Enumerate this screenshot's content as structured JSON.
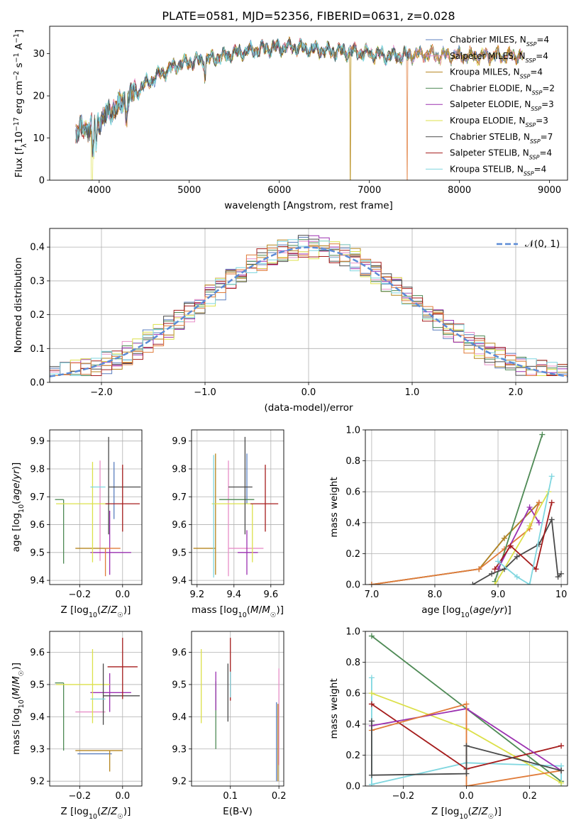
{
  "title": "PLATE=0581, MJD=52356, FIBERID=0631, z=0.028",
  "colors": {
    "Chabrier MILES": "#5b7fbf",
    "Salpeter MILES": "#e88fc8",
    "Kroupa MILES": "#b5851f",
    "Chabrier ELODIE": "#4e8a55",
    "Salpeter ELODIE": "#9b30b0",
    "Kroupa ELODIE": "#dce04a",
    "Chabrier STELIB": "#4a4a4a",
    "Salpeter STELIB": "#a51c1c",
    "Kroupa STELIB": "#7fd6df",
    "orange": "#e07b39",
    "gauss": "#5b8bd6"
  },
  "chart_data": [
    {
      "id": "spectrum",
      "type": "line",
      "xlabel": "wavelength [Angstrom, rest frame]",
      "ylabel": "Flux [f_λ10^-17 erg cm^-2 s^-1 A^-1]",
      "xlim": [
        3450,
        9200
      ],
      "ylim": [
        0,
        36.5
      ],
      "xticks": [
        4000,
        5000,
        6000,
        7000,
        8000,
        9000
      ],
      "yticks": [
        0,
        10,
        20,
        30
      ],
      "legend_position": "right",
      "legend": [
        {
          "name": "Chabrier MILES",
          "nssp": "4"
        },
        {
          "name": "Salpeter MILES",
          "nssp": "4"
        },
        {
          "name": "Kroupa MILES",
          "nssp": "4"
        },
        {
          "name": "Chabrier ELODIE",
          "nssp": "2"
        },
        {
          "name": "Salpeter ELODIE",
          "nssp": "3"
        },
        {
          "name": "Kroupa ELODIE",
          "nssp": "3"
        },
        {
          "name": "Chabrier STELIB",
          "nssp": "7"
        },
        {
          "name": "Salpeter STELIB",
          "nssp": "4"
        },
        {
          "name": "Kroupa STELIB",
          "nssp": "4"
        }
      ],
      "continuum": [
        [
          3740,
          11
        ],
        [
          3800,
          12
        ],
        [
          3900,
          12.5
        ],
        [
          4000,
          14
        ],
        [
          4100,
          16
        ],
        [
          4200,
          17.5
        ],
        [
          4300,
          19
        ],
        [
          4400,
          21
        ],
        [
          4500,
          22.5
        ],
        [
          4600,
          24
        ],
        [
          4700,
          25.5
        ],
        [
          4800,
          26.5
        ],
        [
          4900,
          27.5
        ],
        [
          5000,
          28
        ],
        [
          5200,
          28.5
        ],
        [
          5400,
          29.5
        ],
        [
          5600,
          30.5
        ],
        [
          5800,
          31
        ],
        [
          6000,
          31.5
        ],
        [
          6200,
          31.5
        ],
        [
          6400,
          31
        ],
        [
          6600,
          30.5
        ],
        [
          6800,
          30.5
        ],
        [
          7000,
          30
        ],
        [
          7200,
          29.5
        ],
        [
          7400,
          29.5
        ],
        [
          7600,
          30
        ],
        [
          7800,
          29.5
        ],
        [
          8000,
          29.5
        ],
        [
          8200,
          29.5
        ],
        [
          8400,
          29.5
        ],
        [
          8600,
          29.5
        ],
        [
          8800,
          29.5
        ]
      ]
    },
    {
      "id": "residuals",
      "type": "line",
      "xlabel": "(data-model)/error",
      "ylabel": "Normed distribution",
      "xlim": [
        -2.5,
        2.5
      ],
      "ylim": [
        0,
        0.455
      ],
      "xticks": [
        -2,
        -1,
        0,
        1,
        2
      ],
      "yticks": [
        0.0,
        0.1,
        0.2,
        0.3,
        0.4
      ],
      "grid": true,
      "legend_position": "top-right",
      "series": [
        {
          "name": "𝒩(0, 1)",
          "mu": 0,
          "sigma": 1
        }
      ]
    },
    {
      "id": "age-vs-Z",
      "type": "scatter",
      "xlabel": "Z [log10(Z/Z☉)]",
      "ylabel": "age  [log10(age/yr)]",
      "xlim": [
        -0.34,
        0.09
      ],
      "ylim": [
        9.385,
        9.94
      ],
      "xticks": [
        -0.2,
        0.0
      ],
      "yticks": [
        9.4,
        9.5,
        9.6,
        9.7,
        9.8,
        9.9
      ],
      "grid": true,
      "points": [
        {
          "model": "Chabrier MILES",
          "x": -0.04,
          "y": 9.775,
          "ex": [
            0.0,
            0.0
          ],
          "ey": [
            0.155,
            0.05
          ]
        },
        {
          "model": "Salpeter MILES",
          "x": -0.105,
          "y": 9.68,
          "ex": [
            0.0,
            0.0
          ],
          "ey": [
            0.21,
            0.15
          ]
        },
        {
          "model": "Kroupa MILES",
          "x": -0.08,
          "y": 9.515,
          "ex": [
            0.14,
            0.0
          ],
          "ey": [
            0.0,
            0.0
          ]
        },
        {
          "model": "Chabrier ELODIE",
          "x": -0.275,
          "y": 9.69,
          "ex": [
            0.04,
            0.0
          ],
          "ey": [
            0.23,
            0.0
          ]
        },
        {
          "model": "Salpeter ELODIE",
          "x": -0.06,
          "y": 9.5,
          "ex": [
            0.09,
            0.1
          ],
          "ey": [
            0.08,
            0.15
          ]
        },
        {
          "model": "Kroupa ELODIE",
          "x": -0.14,
          "y": 9.675,
          "ex": [
            0.17,
            0.08
          ],
          "ey": [
            0.21,
            0.15
          ]
        },
        {
          "model": "Chabrier STELIB",
          "x": -0.065,
          "y": 9.735,
          "ex": [
            0.0,
            0.15
          ],
          "ey": [
            0.17,
            0.18
          ]
        },
        {
          "model": "Salpeter STELIB",
          "x": 0.0,
          "y": 9.675,
          "ex": [
            0.08,
            0.08
          ],
          "ey": [
            0.1,
            0.14
          ]
        },
        {
          "model": "Kroupa STELIB",
          "x": -0.08,
          "y": 9.735,
          "ex": [
            0.07,
            0.0
          ],
          "ey": [
            0.0,
            0.0
          ]
        },
        {
          "model": "orange",
          "x": -0.08,
          "y": 9.515,
          "ex": [
            0.0,
            0.07
          ],
          "ey": [
            0.1,
            0.0
          ]
        }
      ]
    },
    {
      "id": "age-vs-mass",
      "type": "scatter",
      "xlabel": "mass [log10(M/M☉)]",
      "ylabel": "",
      "xlim": [
        9.17,
        9.67
      ],
      "ylim": [
        9.385,
        9.94
      ],
      "xticks": [
        9.2,
        9.4,
        9.6
      ],
      "yticks": [
        9.4,
        9.5,
        9.6,
        9.7,
        9.8,
        9.9
      ],
      "grid": true,
      "points": [
        {
          "model": "Chabrier MILES",
          "x": 9.47,
          "y": 9.775,
          "ex": [
            0.0,
            0.0
          ],
          "ey": [
            0.1,
            0.08
          ]
        },
        {
          "model": "Salpeter MILES",
          "x": 9.37,
          "y": 9.515,
          "ex": [
            0.0,
            0.19
          ],
          "ey": [
            0.1,
            0.315
          ]
        },
        {
          "model": "Kroupa MILES",
          "x": 9.3,
          "y": 9.515,
          "ex": [
            0.12,
            0.0
          ],
          "ey": [
            0.095,
            0.34
          ]
        },
        {
          "model": "Chabrier ELODIE",
          "x": 9.4,
          "y": 9.69,
          "ex": [
            0.08,
            0.11
          ],
          "ey": [
            0.0,
            0.0
          ]
        },
        {
          "model": "Salpeter ELODIE",
          "x": 9.47,
          "y": 9.5,
          "ex": [
            0.05,
            0.06
          ],
          "ey": [
            0.08,
            0.08
          ]
        },
        {
          "model": "Kroupa ELODIE",
          "x": 9.5,
          "y": 9.675,
          "ex": [
            0.22,
            0.0
          ],
          "ey": [
            0.21,
            0.0
          ]
        },
        {
          "model": "Chabrier STELIB",
          "x": 9.46,
          "y": 9.735,
          "ex": [
            0.09,
            0.04
          ],
          "ey": [
            0.17,
            0.18
          ]
        },
        {
          "model": "Salpeter STELIB",
          "x": 9.57,
          "y": 9.675,
          "ex": [
            0.08,
            0.07
          ],
          "ey": [
            0.1,
            0.14
          ]
        },
        {
          "model": "Kroupa STELIB",
          "x": 9.29,
          "y": 9.68,
          "ex": [
            0.0,
            0.0
          ],
          "ey": [
            0.27,
            0.17
          ]
        }
      ]
    },
    {
      "id": "weight-vs-age",
      "type": "line",
      "xlabel": "age  [log10(age/yr)]",
      "ylabel": "mass weight",
      "xlim": [
        6.9,
        10.1
      ],
      "ylim": [
        0,
        1.0
      ],
      "xticks": [
        7,
        8,
        9,
        10
      ],
      "yticks": [
        0.0,
        0.2,
        0.4,
        0.6,
        0.8,
        1.0
      ],
      "grid": true,
      "series": [
        {
          "model": "Chabrier MILES",
          "x": [
            7.0,
            8.7,
            9.1,
            9.65
          ],
          "y": [
            0.0,
            0.1,
            0.3,
            0.53
          ]
        },
        {
          "model": "Kroupa MILES",
          "x": [
            7.0,
            8.7,
            9.1,
            9.65
          ],
          "y": [
            0.0,
            0.1,
            0.3,
            0.53
          ]
        },
        {
          "model": "orange",
          "x": [
            7.0,
            8.7,
            9.1,
            9.5,
            9.65
          ],
          "y": [
            0.0,
            0.1,
            0.23,
            0.36,
            0.53
          ]
        },
        {
          "model": "Chabrier ELODIE",
          "x": [
            8.95,
            9.7
          ],
          "y": [
            0.02,
            0.97
          ]
        },
        {
          "model": "Salpeter ELODIE",
          "x": [
            9.0,
            9.5,
            9.65
          ],
          "y": [
            0.1,
            0.5,
            0.4
          ]
        },
        {
          "model": "Kroupa ELODIE",
          "x": [
            8.95,
            9.5,
            9.8
          ],
          "y": [
            0.0,
            0.38,
            0.6
          ]
        },
        {
          "model": "Chabrier STELIB",
          "x": [
            8.6,
            8.9,
            9.1,
            9.3,
            9.65,
            9.85,
            9.95,
            10.0
          ],
          "y": [
            0.0,
            0.07,
            0.1,
            0.18,
            0.26,
            0.42,
            0.05,
            0.07
          ]
        },
        {
          "model": "Salpeter STELIB",
          "x": [
            8.95,
            9.2,
            9.6,
            9.85
          ],
          "y": [
            0.1,
            0.25,
            0.1,
            0.53
          ]
        },
        {
          "model": "Kroupa STELIB",
          "x": [
            9.0,
            9.3,
            9.5,
            9.85
          ],
          "y": [
            0.15,
            0.05,
            0.0,
            0.7
          ]
        }
      ]
    },
    {
      "id": "mass-vs-Z",
      "type": "scatter",
      "xlabel": "Z [log10(Z/Z☉)]",
      "ylabel": "mass [log10(M/M☉)]",
      "xlim": [
        -0.34,
        0.09
      ],
      "ylim": [
        9.185,
        9.665
      ],
      "xticks": [
        -0.2,
        0.0
      ],
      "yticks": [
        9.2,
        9.3,
        9.4,
        9.5,
        9.6
      ],
      "grid": true,
      "points": [
        {
          "model": "Chabrier MILES",
          "x": -0.05,
          "y": 9.285,
          "ex": [
            0.16,
            0.0
          ],
          "ey": [
            0.0,
            0.0
          ]
        },
        {
          "model": "Salpeter MILES",
          "x": -0.08,
          "y": 9.415,
          "ex": [
            0.14,
            0.0
          ],
          "ey": [
            0.0,
            0.0
          ]
        },
        {
          "model": "Kroupa MILES",
          "x": -0.06,
          "y": 9.295,
          "ex": [
            0.16,
            0.06
          ],
          "ey": [
            0.065,
            0.0
          ]
        },
        {
          "model": "Chabrier ELODIE",
          "x": -0.275,
          "y": 9.505,
          "ex": [
            0.04,
            0.0
          ],
          "ey": [
            0.21,
            0.0
          ]
        },
        {
          "model": "Salpeter ELODIE",
          "x": -0.06,
          "y": 9.475,
          "ex": [
            0.09,
            0.1
          ],
          "ey": [
            0.06,
            0.06
          ]
        },
        {
          "model": "Kroupa ELODIE",
          "x": -0.14,
          "y": 9.5,
          "ex": [
            0.17,
            0.08
          ],
          "ey": [
            0.12,
            0.11
          ]
        },
        {
          "model": "Chabrier STELIB",
          "x": -0.09,
          "y": 9.465,
          "ex": [
            0.0,
            0.17
          ],
          "ey": [
            0.09,
            0.1
          ]
        },
        {
          "model": "Salpeter STELIB",
          "x": 0.0,
          "y": 9.555,
          "ex": [
            0.07,
            0.07
          ],
          "ey": [
            0.1,
            0.09
          ]
        },
        {
          "model": "Kroupa STELIB",
          "x": -0.08,
          "y": 9.455,
          "ex": [
            0.07,
            0.0
          ],
          "ey": [
            0.0,
            0.0
          ]
        }
      ]
    },
    {
      "id": "mass-vs-EBV",
      "type": "scatter",
      "xlabel": "E(B-V)",
      "ylabel": "",
      "xlim": [
        0.02,
        0.21
      ],
      "ylim": [
        9.185,
        9.665
      ],
      "xticks": [
        0.1,
        0.2
      ],
      "yticks": [
        9.2,
        9.3,
        9.4,
        9.5,
        9.6
      ],
      "grid": true,
      "points": [
        {
          "model": "Chabrier MILES",
          "x": 0.195,
          "y": 9.3,
          "ex": [
            0.0,
            0.0
          ],
          "ey": [
            0.1,
            0.145
          ]
        },
        {
          "model": "Salpeter MILES",
          "x": 0.2,
          "y": 9.4,
          "ex": [
            0.0,
            0.0
          ],
          "ey": [
            0.15,
            0.15
          ]
        },
        {
          "model": "Kroupa MILES",
          "x": 0.198,
          "y": 9.3,
          "ex": [
            0.0,
            0.0
          ],
          "ey": [
            0.1,
            0.14
          ]
        },
        {
          "model": "Chabrier ELODIE",
          "x": 0.07,
          "y": 9.41,
          "ex": [
            0.0,
            0.0
          ],
          "ey": [
            0.11,
            0.1
          ]
        },
        {
          "model": "Salpeter ELODIE",
          "x": 0.07,
          "y": 9.48,
          "ex": [
            0.0,
            0.0
          ],
          "ey": [
            0.06,
            0.06
          ]
        },
        {
          "model": "Kroupa ELODIE",
          "x": 0.04,
          "y": 9.5,
          "ex": [
            0.0,
            0.0
          ],
          "ey": [
            0.12,
            0.11
          ]
        },
        {
          "model": "Chabrier STELIB",
          "x": 0.095,
          "y": 9.475,
          "ex": [
            0.0,
            0.0
          ],
          "ey": [
            0.09,
            0.09
          ]
        },
        {
          "model": "Salpeter STELIB",
          "x": 0.1,
          "y": 9.55,
          "ex": [
            0.0,
            0.0
          ],
          "ey": [
            0.1,
            0.095
          ]
        },
        {
          "model": "Kroupa STELIB",
          "x": 0.1,
          "y": 9.5,
          "ex": [
            0.0,
            0.0
          ],
          "ey": [
            0.04,
            0.04
          ]
        }
      ]
    },
    {
      "id": "weight-vs-Z",
      "type": "line",
      "xlabel": "Z [log10(Z/Z☉)]",
      "ylabel": "mass weight",
      "xlim": [
        -0.32,
        0.32
      ],
      "ylim": [
        0,
        1.0
      ],
      "xticks": [
        -0.2,
        0.0,
        0.2
      ],
      "yticks": [
        0.0,
        0.2,
        0.4,
        0.6,
        0.8,
        1.0
      ],
      "grid": true,
      "series": [
        {
          "model": "Chabrier ELODIE",
          "x": [
            -0.3,
            0.3
          ],
          "y": [
            0.97,
            0.03
          ]
        },
        {
          "model": "Kroupa STELIB",
          "x": [
            -0.3,
            -0.3,
            0.0,
            0.3,
            0.3
          ],
          "y": [
            0.7,
            0.01,
            0.15,
            0.13,
            0.0
          ]
        },
        {
          "model": "Kroupa ELODIE",
          "x": [
            -0.3,
            0.0,
            0.3
          ],
          "y": [
            0.6,
            0.37,
            0.02
          ]
        },
        {
          "model": "Salpeter STELIB",
          "x": [
            -0.3,
            0.0,
            0.3
          ],
          "y": [
            0.53,
            0.11,
            0.26
          ]
        },
        {
          "model": "Salpeter ELODIE",
          "x": [
            -0.3,
            0.0,
            0.3
          ],
          "y": [
            0.39,
            0.5,
            0.1
          ]
        },
        {
          "model": "orange",
          "x": [
            -0.3,
            0.0,
            0.0,
            0.3
          ],
          "y": [
            0.36,
            0.53,
            0.0,
            0.1
          ]
        },
        {
          "model": "Chabrier STELIB",
          "x": [
            -0.3,
            -0.3,
            0.0,
            0.0,
            0.3
          ],
          "y": [
            0.42,
            0.07,
            0.08,
            0.26,
            0.1
          ]
        }
      ]
    }
  ]
}
